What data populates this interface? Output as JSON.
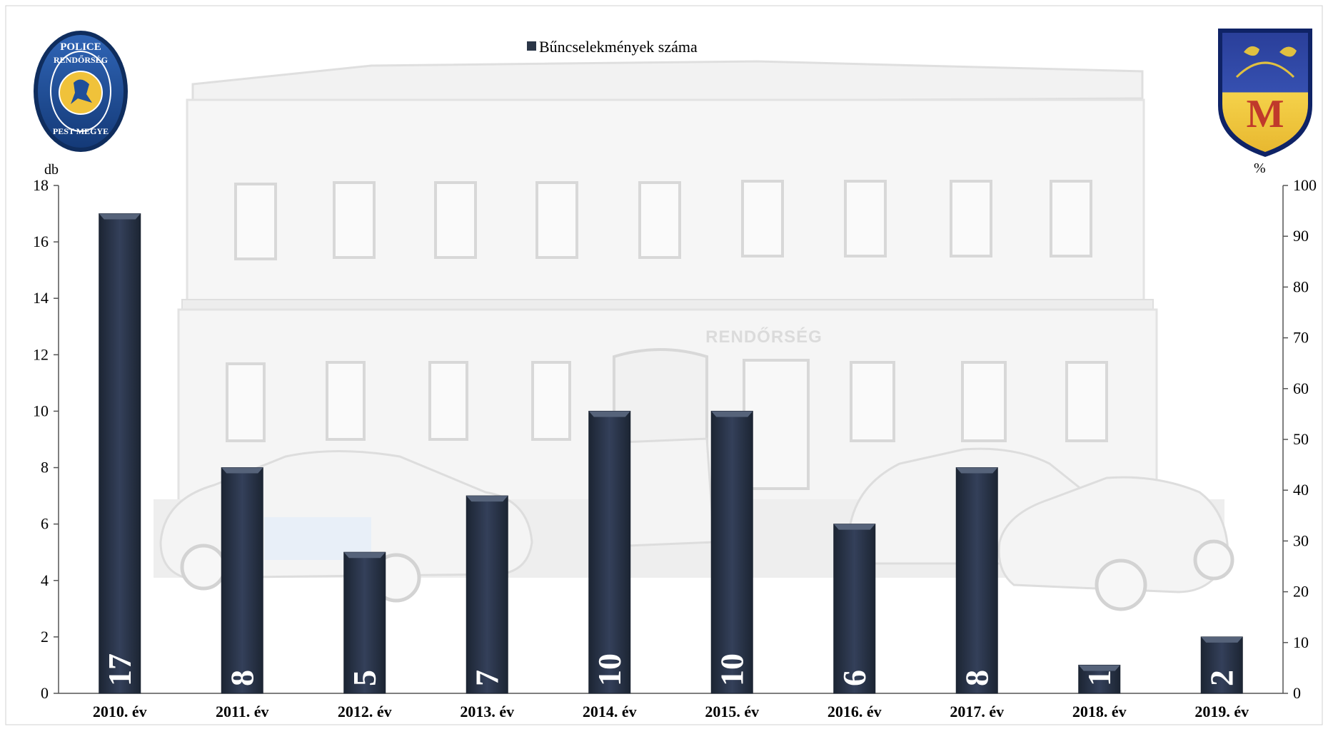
{
  "legend": {
    "label": "Bűncselekmények száma"
  },
  "logos": {
    "left": {
      "icon": "police-badge-icon",
      "text_top": "POLICE",
      "text_mid": "RENDŐRSÉG",
      "text_bottom": "PEST MEGYE",
      "color": "#1f4f9a"
    },
    "right": {
      "icon": "coat-of-arms-icon",
      "letter": "M",
      "color": "#c0392b"
    }
  },
  "background": {
    "building_sign": "RENDŐRSÉG"
  },
  "colors": {
    "bar": "#2b3647",
    "bar_highlight": "#56637a",
    "axis": "#555555"
  },
  "chart_data": {
    "type": "bar",
    "categories": [
      "2010. év",
      "2011. év",
      "2012. év",
      "2013. év",
      "2014. év",
      "2015. év",
      "2016. év",
      "2017. év",
      "2018. év",
      "2019. év"
    ],
    "series": [
      {
        "name": "Bűncselekmények száma",
        "values": [
          17,
          8,
          5,
          7,
          10,
          10,
          6,
          8,
          1,
          2
        ]
      }
    ],
    "ylabel": "db",
    "y2label": "%",
    "ylim": [
      0,
      18
    ],
    "yticks": [
      0,
      2,
      4,
      6,
      8,
      10,
      12,
      14,
      16,
      18
    ],
    "y2lim": [
      0,
      100
    ],
    "y2ticks": [
      0,
      10,
      20,
      30,
      40,
      50,
      60,
      70,
      80,
      90,
      100
    ],
    "grid": false,
    "legend_position": "top-center"
  }
}
